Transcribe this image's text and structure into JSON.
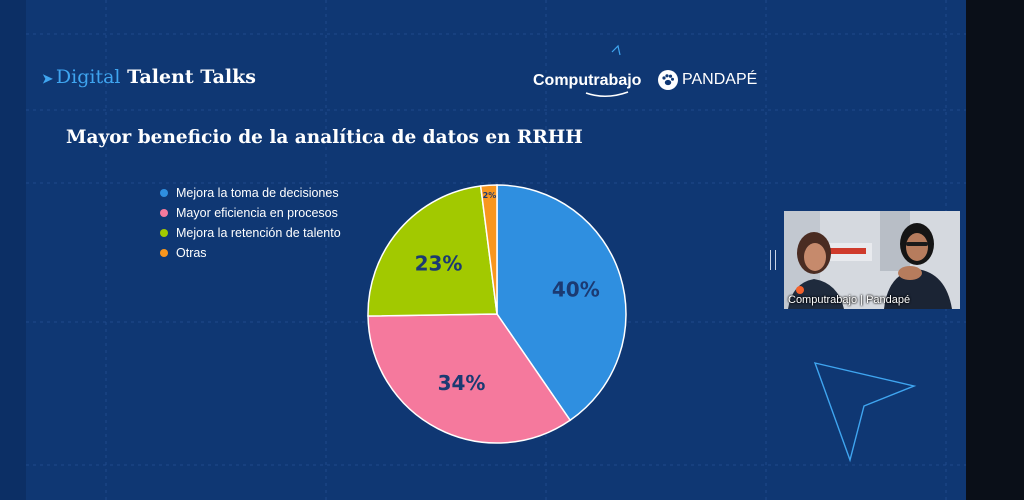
{
  "header": {
    "brand_part1": "Digital",
    "brand_part2": "Talent Talks",
    "sponsor1": "Computrabajo",
    "sponsor2": "PANDAPÉ"
  },
  "webcam": {
    "caption": "Computrabajo | Pandapé"
  },
  "colors": {
    "background": "#0f3773",
    "accent": "#3fa5f0",
    "slice_label_dark": "#1b3a72"
  },
  "chart_data": {
    "type": "pie",
    "title": "Mayor beneficio de la analítica de datos en RRHH",
    "categories": [
      "Mejora la toma de decisiones",
      "Mayor eficiencia en procesos",
      "Mejora la retención de talento",
      "Otras"
    ],
    "values": [
      40,
      34,
      23,
      2
    ],
    "labels": [
      "40%",
      "34%",
      "23%",
      "2%"
    ],
    "colors": [
      "#2f8fe0",
      "#f5799d",
      "#a2c900",
      "#f8961e"
    ],
    "start": "top, clockwise",
    "legend": "top-left"
  }
}
